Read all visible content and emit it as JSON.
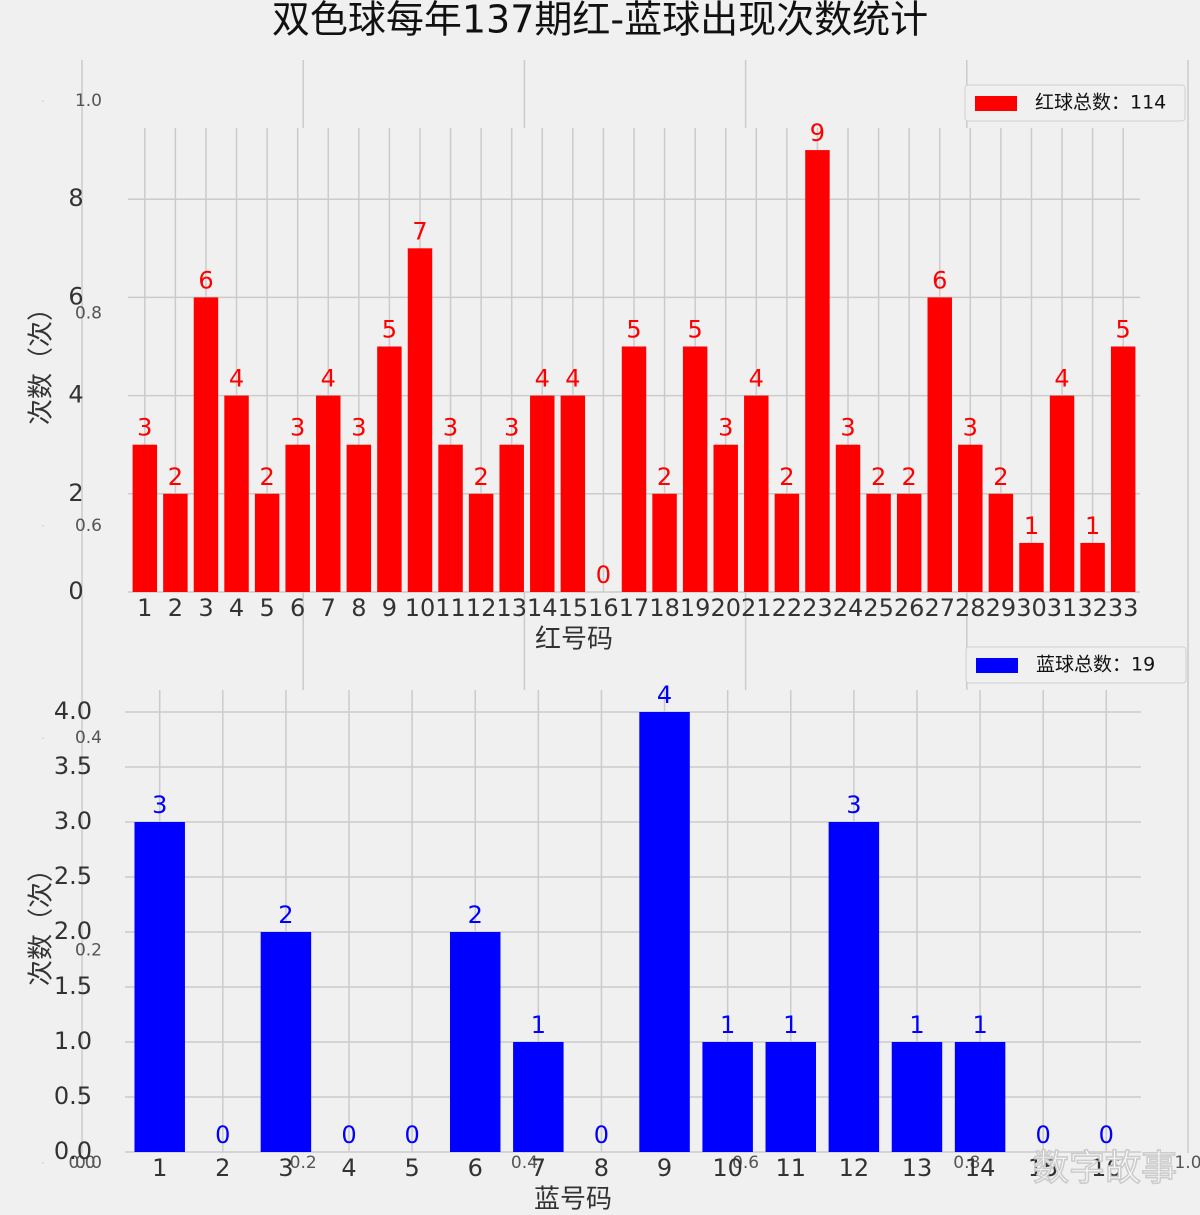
{
  "chart_data": [
    {
      "type": "bar",
      "title": "双色球每年137期红-蓝球出现次数统计",
      "categories": [
        "1",
        "2",
        "3",
        "4",
        "5",
        "6",
        "7",
        "8",
        "9",
        "10",
        "11",
        "12",
        "13",
        "14",
        "15",
        "16",
        "17",
        "18",
        "19",
        "20",
        "21",
        "22",
        "23",
        "24",
        "25",
        "26",
        "27",
        "28",
        "29",
        "30",
        "31",
        "32",
        "33"
      ],
      "series": [
        {
          "name": "红球总数：114",
          "color": "#ff0000",
          "values": [
            3,
            2,
            6,
            4,
            2,
            3,
            4,
            3,
            5,
            7,
            3,
            2,
            3,
            4,
            4,
            0,
            5,
            2,
            5,
            3,
            4,
            2,
            9,
            3,
            2,
            2,
            6,
            3,
            2,
            1,
            4,
            1,
            5
          ]
        }
      ],
      "ylim": [
        0,
        9.45
      ],
      "yticks": [
        0,
        2,
        4,
        6,
        8
      ],
      "xlabel": "红号码",
      "ylabel": "次数（次）",
      "grid": true,
      "legend": "upper-right"
    },
    {
      "type": "bar",
      "categories": [
        "1",
        "2",
        "3",
        "4",
        "5",
        "6",
        "7",
        "8",
        "9",
        "10",
        "11",
        "12",
        "13",
        "14",
        "15",
        "16"
      ],
      "series": [
        {
          "name": "蓝球总数：19",
          "color": "#0000ff",
          "values": [
            3,
            0,
            2,
            0,
            0,
            2,
            1,
            0,
            4,
            1,
            1,
            3,
            1,
            1,
            0,
            0
          ]
        }
      ],
      "ylim": [
        0,
        4.2
      ],
      "yticks": [
        {
          "value": 0,
          "label": "0.0"
        },
        {
          "value": 0.5,
          "label": "0.5"
        },
        {
          "value": 1,
          "label": "1.0"
        },
        {
          "value": 1.5,
          "label": "1.5"
        },
        {
          "value": 2,
          "label": "2.0"
        },
        {
          "value": 2.5,
          "label": "2.5"
        },
        {
          "value": 3,
          "label": "3.0"
        },
        {
          "value": 3.5,
          "label": "3.5"
        },
        {
          "value": 4,
          "label": "4.0"
        }
      ],
      "xlabel": "蓝号码",
      "ylabel": "次数（次）",
      "grid": true,
      "legend": "upper-right"
    },
    {
      "type": "axes",
      "xlim": [
        0,
        1
      ],
      "ylim": [
        0,
        1
      ],
      "xticks": [
        {
          "value": 0,
          "label": "0.0"
        },
        {
          "value": 0.2,
          "label": "0.2"
        },
        {
          "value": 0.4,
          "label": "0.4"
        },
        {
          "value": 0.6,
          "label": "0.6"
        },
        {
          "value": 0.8,
          "label": "0.8"
        },
        {
          "value": 1,
          "label": "1.0"
        }
      ],
      "yticks": [
        {
          "value": 0,
          "label": "0.0"
        },
        {
          "value": 0.2,
          "label": "0.2"
        },
        {
          "value": 0.4,
          "label": "0.4"
        },
        {
          "value": 0.6,
          "label": "0.6"
        },
        {
          "value": 0.8,
          "label": "0.8"
        },
        {
          "value": 1,
          "label": "1.0"
        }
      ],
      "grid": true
    }
  ],
  "watermark": "数字故事"
}
